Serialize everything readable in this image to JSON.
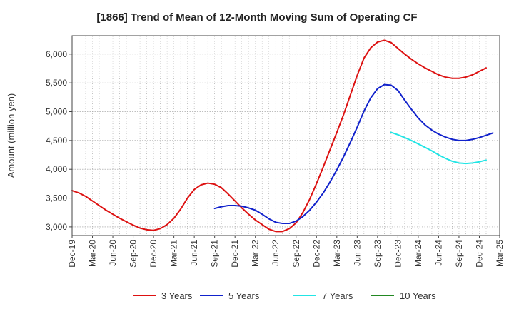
{
  "chart_data": {
    "type": "line",
    "title": "[1866]  Trend of Mean of 12-Month Moving Sum of Operating CF",
    "xlabel": "",
    "ylabel": "Amount (million yen)",
    "ylim": [
      2850,
      6320
    ],
    "yticks": [
      3000,
      3500,
      4000,
      4500,
      5000,
      5500,
      6000
    ],
    "ytick_labels": [
      "3,000",
      "3,500",
      "4,000",
      "4,500",
      "5,000",
      "5,500",
      "6,000"
    ],
    "x_start": "Dec-19",
    "x_end": "Mar-25",
    "x_count": 64,
    "xtick_labels": [
      "Dec-19",
      "Mar-20",
      "Jun-20",
      "Sep-20",
      "Dec-20",
      "Mar-21",
      "Jun-21",
      "Sep-21",
      "Dec-21",
      "Mar-22",
      "Jun-22",
      "Sep-22",
      "Dec-22",
      "Mar-23",
      "Jun-23",
      "Sep-23",
      "Dec-23",
      "Mar-24",
      "Jun-24",
      "Sep-24",
      "Dec-24",
      "Mar-25"
    ],
    "grid": true,
    "legend_position": "bottom",
    "series": [
      {
        "name": "3 Years",
        "color": "#dd1111",
        "start_index": 0,
        "values": [
          3630,
          3590,
          3530,
          3450,
          3370,
          3290,
          3220,
          3150,
          3090,
          3030,
          2980,
          2950,
          2940,
          2970,
          3040,
          3150,
          3310,
          3500,
          3650,
          3730,
          3760,
          3740,
          3680,
          3570,
          3450,
          3330,
          3220,
          3120,
          3040,
          2960,
          2920,
          2920,
          2970,
          3070,
          3250,
          3480,
          3750,
          4040,
          4340,
          4640,
          4950,
          5290,
          5630,
          5930,
          6110,
          6210,
          6240,
          6200,
          6100,
          6000,
          5910,
          5830,
          5760,
          5700,
          5640,
          5600,
          5580,
          5580,
          5600,
          5640,
          5700,
          5760
        ]
      },
      {
        "name": "5 Years",
        "color": "#1122cc",
        "start_index": 21,
        "values": [
          3320,
          3350,
          3370,
          3370,
          3360,
          3330,
          3290,
          3220,
          3140,
          3080,
          3060,
          3060,
          3100,
          3180,
          3290,
          3430,
          3590,
          3780,
          3990,
          4220,
          4470,
          4730,
          5010,
          5240,
          5400,
          5470,
          5460,
          5370,
          5200,
          5040,
          4890,
          4770,
          4680,
          4610,
          4560,
          4520,
          4500,
          4500,
          4520,
          4550,
          4590,
          4630
        ]
      },
      {
        "name": "7 Years",
        "color": "#22e5e5",
        "start_index": 47,
        "values": [
          4640,
          4600,
          4550,
          4500,
          4440,
          4380,
          4320,
          4250,
          4190,
          4140,
          4110,
          4100,
          4110,
          4130,
          4160
        ]
      },
      {
        "name": "10 Years",
        "color": "#228822",
        "start_index": 0,
        "values": []
      }
    ]
  }
}
